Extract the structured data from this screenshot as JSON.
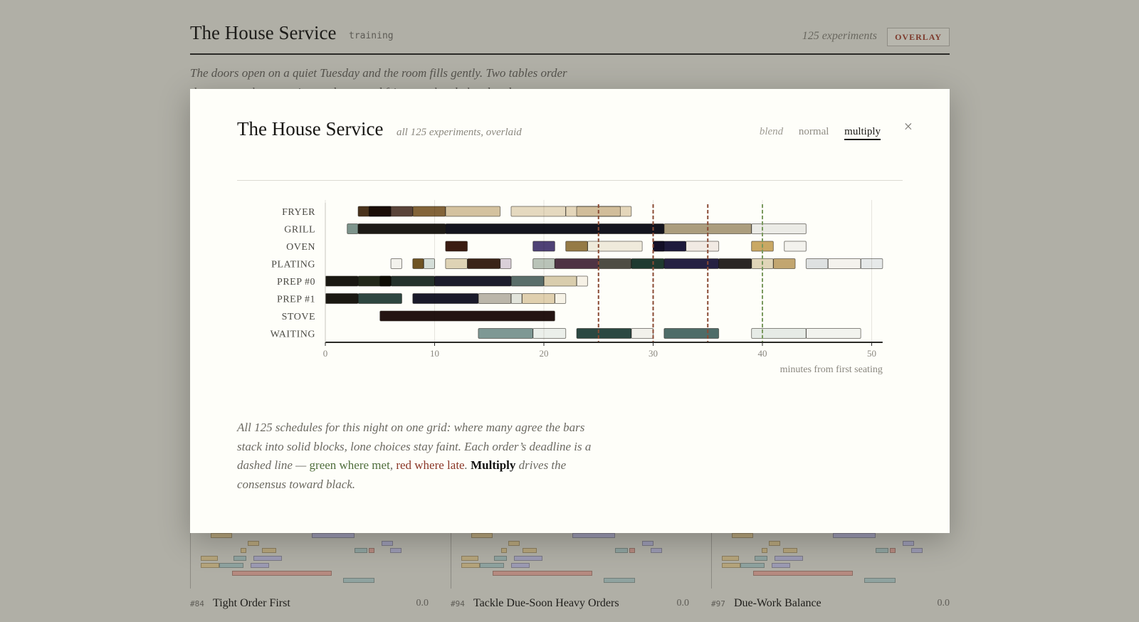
{
  "page": {
    "title": "The House Service",
    "tag": "training",
    "experiments_label": "125 experiments",
    "overlay_button": "OVERLAY",
    "intro_line1": "The doors open on a quiet Tuesday and the room fills gently. Two tables order",
    "intro_line2": "the same at the same time and a second fries out ahead ahead and to"
  },
  "modal": {
    "title": "The House Service",
    "subtitle": "all 125 experiments, overlaid",
    "modes": [
      {
        "label": "blend",
        "active": false
      },
      {
        "label": "normal",
        "active": false
      },
      {
        "label": "multiply",
        "active": true
      }
    ],
    "close_glyph": "×",
    "description": {
      "part1": "All 125 schedules for this night on one grid: where many agree the bars stack into solid blocks, lone choices stay faint. Each order’s deadline is a dashed line — ",
      "met": "green where met",
      "sep": ", ",
      "late": "red where late",
      "dot": ". ",
      "strong": "Multiply",
      "part2": " drives the consensus toward black."
    }
  },
  "chart_data": {
    "type": "gantt",
    "xlabel": "minutes from first seating",
    "xlim": [
      0,
      51
    ],
    "xticks": [
      0,
      10,
      20,
      30,
      40,
      50
    ],
    "rows": [
      "FRYER",
      "GRILL",
      "OVEN",
      "PLATING",
      "PREP #0",
      "PREP #1",
      "STOVE",
      "WAITING"
    ],
    "deadlines": [
      {
        "t": 25,
        "status": "late"
      },
      {
        "t": 30,
        "status": "late"
      },
      {
        "t": 35,
        "status": "late"
      },
      {
        "t": 40,
        "status": "met"
      }
    ],
    "colors": {
      "late": "#8a4a34",
      "met": "#7a9a5e",
      "bar_stroke": "#2a2620",
      "axis": "#2a2a27",
      "grid": "#e6e4de"
    },
    "bars": [
      {
        "row": 0,
        "start": 3,
        "end": 6,
        "color": "#4a331c",
        "opacity": 1
      },
      {
        "row": 0,
        "start": 4,
        "end": 8,
        "color": "#3d2318",
        "opacity": 0.85
      },
      {
        "row": 0,
        "start": 8,
        "end": 11,
        "color": "#7c5c2e",
        "opacity": 0.95
      },
      {
        "row": 0,
        "start": 11,
        "end": 16,
        "color": "#b89a62",
        "opacity": 0.6
      },
      {
        "row": 0,
        "start": 17,
        "end": 22,
        "color": "#c8ac78",
        "opacity": 0.45
      },
      {
        "row": 0,
        "start": 22,
        "end": 28,
        "color": "#c9ad7c",
        "opacity": 0.5
      },
      {
        "row": 0,
        "start": 23,
        "end": 27,
        "color": "#b59b6a",
        "opacity": 0.3
      },
      {
        "row": 1,
        "start": 2,
        "end": 3,
        "color": "#7d948c",
        "opacity": 1
      },
      {
        "row": 1,
        "start": 3,
        "end": 11,
        "color": "#1d1a16",
        "opacity": 1
      },
      {
        "row": 1,
        "start": 11,
        "end": 31,
        "color": "#14141e",
        "opacity": 1
      },
      {
        "row": 1,
        "start": 31,
        "end": 39,
        "color": "#a29270",
        "opacity": 0.9
      },
      {
        "row": 1,
        "start": 39,
        "end": 44,
        "color": "#d8d8d4",
        "opacity": 0.5
      },
      {
        "row": 2,
        "start": 11,
        "end": 13,
        "color": "#3a1c12",
        "opacity": 1
      },
      {
        "row": 2,
        "start": 19,
        "end": 21,
        "color": "#4e4176",
        "opacity": 1
      },
      {
        "row": 2,
        "start": 22,
        "end": 24,
        "color": "#957a46",
        "opacity": 1
      },
      {
        "row": 2,
        "start": 24,
        "end": 29,
        "color": "#e5dcc6",
        "opacity": 0.6
      },
      {
        "row": 2,
        "start": 30,
        "end": 33,
        "color": "#1e1a3c",
        "opacity": 1
      },
      {
        "row": 2,
        "start": 30,
        "end": 31,
        "color": "#7a6c90",
        "opacity": 0.8
      },
      {
        "row": 2,
        "start": 33,
        "end": 36,
        "color": "#e8dcd4",
        "opacity": 0.6
      },
      {
        "row": 2,
        "start": 39,
        "end": 41,
        "color": "#c9a864",
        "opacity": 1
      },
      {
        "row": 2,
        "start": 42,
        "end": 44,
        "color": "#ebe9e4",
        "opacity": 0.6
      },
      {
        "row": 3,
        "start": 6,
        "end": 7,
        "color": "#e8e6e0",
        "opacity": 0.5
      },
      {
        "row": 3,
        "start": 8,
        "end": 9,
        "color": "#6f5424",
        "opacity": 1
      },
      {
        "row": 3,
        "start": 9,
        "end": 10,
        "color": "#c9d6cf",
        "opacity": 0.8
      },
      {
        "row": 3,
        "start": 11,
        "end": 13,
        "color": "#d6c8a4",
        "opacity": 0.8
      },
      {
        "row": 3,
        "start": 13,
        "end": 16,
        "color": "#3a2418",
        "opacity": 1
      },
      {
        "row": 3,
        "start": 16,
        "end": 17,
        "color": "#cfc3cf",
        "opacity": 0.8
      },
      {
        "row": 3,
        "start": 19,
        "end": 21,
        "color": "#a8b4a8",
        "opacity": 0.8
      },
      {
        "row": 3,
        "start": 21,
        "end": 25,
        "color": "#4e3344",
        "opacity": 1
      },
      {
        "row": 3,
        "start": 25,
        "end": 28,
        "color": "#3b3a30",
        "opacity": 0.9
      },
      {
        "row": 3,
        "start": 28,
        "end": 31,
        "color": "#1f3a30",
        "opacity": 1
      },
      {
        "row": 3,
        "start": 31,
        "end": 36,
        "color": "#252142",
        "opacity": 1
      },
      {
        "row": 3,
        "start": 36,
        "end": 39,
        "color": "#2a2624",
        "opacity": 1
      },
      {
        "row": 3,
        "start": 39,
        "end": 41,
        "color": "#d8caa8",
        "opacity": 0.8
      },
      {
        "row": 3,
        "start": 41,
        "end": 43,
        "color": "#c2a670",
        "opacity": 1
      },
      {
        "row": 3,
        "start": 44,
        "end": 46,
        "color": "#d6dadb",
        "opacity": 0.8
      },
      {
        "row": 3,
        "start": 46,
        "end": 49,
        "color": "#eceae4",
        "opacity": 0.6
      },
      {
        "row": 3,
        "start": 49,
        "end": 51,
        "color": "#dcdfe2",
        "opacity": 0.7
      },
      {
        "row": 4,
        "start": 0,
        "end": 3,
        "color": "#1a1812",
        "opacity": 1
      },
      {
        "row": 4,
        "start": 3,
        "end": 6,
        "color": "#22281a",
        "opacity": 1
      },
      {
        "row": 4,
        "start": 5,
        "end": 6,
        "color": "#5c4a26",
        "opacity": 1
      },
      {
        "row": 4,
        "start": 6,
        "end": 10,
        "color": "#24322c",
        "opacity": 1
      },
      {
        "row": 4,
        "start": 10,
        "end": 17,
        "color": "#1c1c2c",
        "opacity": 1
      },
      {
        "row": 4,
        "start": 17,
        "end": 20,
        "color": "#5a6e6a",
        "opacity": 1
      },
      {
        "row": 4,
        "start": 20,
        "end": 23,
        "color": "#cfc09a",
        "opacity": 0.8
      },
      {
        "row": 4,
        "start": 23,
        "end": 24,
        "color": "#f0e8d8",
        "opacity": 0.6
      },
      {
        "row": 5,
        "start": 0,
        "end": 3,
        "color": "#1a1812",
        "opacity": 1
      },
      {
        "row": 5,
        "start": 3,
        "end": 7,
        "color": "#2e4640",
        "opacity": 1
      },
      {
        "row": 5,
        "start": 8,
        "end": 14,
        "color": "#1a1a2a",
        "opacity": 1
      },
      {
        "row": 5,
        "start": 14,
        "end": 17,
        "color": "#aaa496",
        "opacity": 0.8
      },
      {
        "row": 5,
        "start": 17,
        "end": 18,
        "color": "#d6d8cf",
        "opacity": 0.7
      },
      {
        "row": 5,
        "start": 18,
        "end": 21,
        "color": "#d8c49c",
        "opacity": 0.8
      },
      {
        "row": 5,
        "start": 21,
        "end": 22,
        "color": "#f0ead8",
        "opacity": 0.6
      },
      {
        "row": 6,
        "start": 5,
        "end": 21,
        "color": "#241412",
        "opacity": 1
      },
      {
        "row": 7,
        "start": 14,
        "end": 19,
        "color": "#7e9894",
        "opacity": 1
      },
      {
        "row": 7,
        "start": 19,
        "end": 22,
        "color": "#d8e0dc",
        "opacity": 0.5
      },
      {
        "row": 7,
        "start": 23,
        "end": 28,
        "color": "#2b4842",
        "opacity": 1
      },
      {
        "row": 7,
        "start": 28,
        "end": 30,
        "color": "#e6e4de",
        "opacity": 0.5
      },
      {
        "row": 7,
        "start": 31,
        "end": 36,
        "color": "#4e6c68",
        "opacity": 1
      },
      {
        "row": 7,
        "start": 39,
        "end": 44,
        "color": "#d6ded8",
        "opacity": 0.6
      },
      {
        "row": 7,
        "start": 44,
        "end": 49,
        "color": "#e6e8e3",
        "opacity": 0.5
      }
    ]
  },
  "cards": [
    {
      "num": "#84",
      "name": "Tight Order First",
      "score": "0.0"
    },
    {
      "num": "#94",
      "name": "Tackle Due-Soon Heavy Orders",
      "score": "0.0"
    },
    {
      "num": "#97",
      "name": "Due-Work Balance",
      "score": "0.0"
    }
  ],
  "card_colors": {
    "gold": "#b6a57c",
    "blue": "#9c9bb4",
    "teal": "#8fa3a0",
    "red": "#b68a80"
  }
}
